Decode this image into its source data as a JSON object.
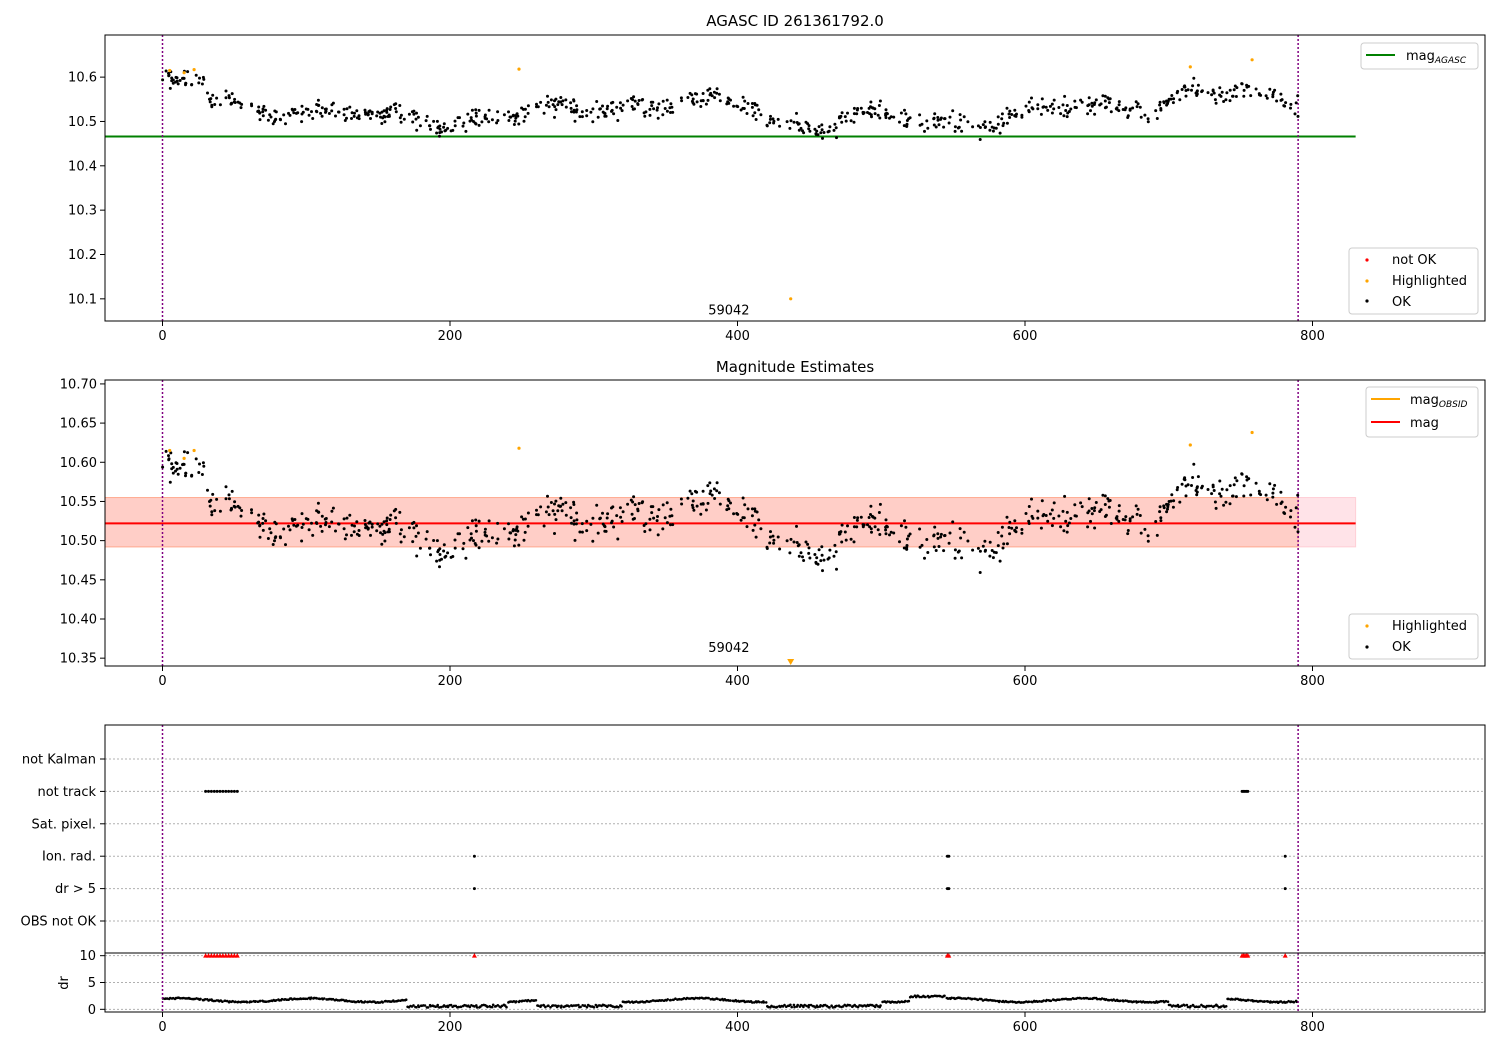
{
  "figure": {
    "background": "#ffffff"
  },
  "chart_data": [
    {
      "type": "scatter",
      "title": "AGASC ID 261361792.0",
      "xlabel": "",
      "ylabel": "",
      "xlim": [
        -40,
        920
      ],
      "ylim": [
        10.05,
        10.695
      ],
      "xticks": [
        0,
        200,
        400,
        600,
        800
      ],
      "xtick_labels": [
        "0",
        "200",
        "400",
        "600",
        "800"
      ],
      "yticks": [
        10.1,
        10.2,
        10.3,
        10.4,
        10.5,
        10.6
      ],
      "ytick_labels": [
        "10.1",
        "10.2",
        "10.3",
        "10.4",
        "10.5",
        "10.6"
      ],
      "grid": false,
      "vlines": [
        0,
        790
      ],
      "vline_color": "#800080",
      "annotation": {
        "text": "59042",
        "x": 394,
        "y": 10.065
      },
      "hline": {
        "label": "mag_AGASC",
        "value": 10.466,
        "xrange": [
          -40,
          830
        ],
        "color": "#008000"
      },
      "legend_lines": {
        "position": "upper right",
        "entries": [
          {
            "label": "mag",
            "sub": "AGASC",
            "color": "#008000"
          }
        ]
      },
      "legend_points": {
        "position": "lower right",
        "entries": [
          {
            "label": "not OK",
            "color": "#ff0000"
          },
          {
            "label": "Highlighted",
            "color": "#ffa500"
          },
          {
            "label": "OK",
            "color": "#000000"
          }
        ]
      },
      "series": [
        {
          "name": "OK",
          "color": "#000000",
          "generated": true,
          "n": 760,
          "x_range": [
            0,
            790
          ]
        },
        {
          "name": "Highlighted",
          "color": "#ffa500",
          "points": [
            [
              5,
              10.615
            ],
            [
              15,
              10.61
            ],
            [
              22,
              10.617
            ],
            [
              248,
              10.618
            ],
            [
              715,
              10.623
            ],
            [
              758,
              10.639
            ],
            [
              437,
              10.1
            ]
          ]
        },
        {
          "name": "not OK",
          "color": "#ff0000",
          "points": []
        }
      ]
    },
    {
      "type": "scatter",
      "title": "Magnitude Estimates",
      "xlabel": "",
      "ylabel": "",
      "xlim": [
        -40,
        920
      ],
      "ylim": [
        10.34,
        10.705
      ],
      "xticks": [
        0,
        200,
        400,
        600,
        800
      ],
      "xtick_labels": [
        "0",
        "200",
        "400",
        "600",
        "800"
      ],
      "yticks": [
        10.35,
        10.4,
        10.45,
        10.5,
        10.55,
        10.6,
        10.65,
        10.7
      ],
      "ytick_labels": [
        "10.35",
        "10.40",
        "10.45",
        "10.50",
        "10.55",
        "10.60",
        "10.65",
        "10.70"
      ],
      "grid": false,
      "vlines": [
        0,
        790
      ],
      "vline_color": "#800080",
      "annotation": {
        "text": "59042",
        "x": 394,
        "y": 10.358
      },
      "bands": [
        {
          "y0": 10.492,
          "y1": 10.555,
          "xrange": [
            -40,
            830
          ],
          "color": "#ffc0cb",
          "opacity": 0.45
        },
        {
          "y0": 10.492,
          "y1": 10.555,
          "xrange": [
            -40,
            790
          ],
          "color": "#ffa07a",
          "opacity": 0.3
        }
      ],
      "hline": {
        "label": "mag",
        "value": 10.522,
        "xrange": [
          -40,
          830
        ],
        "color": "#ff0000"
      },
      "legend_lines": {
        "position": "upper right",
        "entries": [
          {
            "label": "mag",
            "sub": "OBSID",
            "color": "#ffa500"
          },
          {
            "label": "mag",
            "sub": "",
            "color": "#ff0000"
          }
        ]
      },
      "legend_points": {
        "position": "lower right",
        "entries": [
          {
            "label": "Highlighted",
            "color": "#ffa500"
          },
          {
            "label": "OK",
            "color": "#000000"
          }
        ]
      },
      "series": [
        {
          "name": "OK",
          "color": "#000000",
          "generated": true,
          "n": 760,
          "x_range": [
            0,
            790
          ]
        },
        {
          "name": "Highlighted",
          "color": "#ffa500",
          "points": [
            [
              5,
              10.615
            ],
            [
              15,
              10.605
            ],
            [
              22,
              10.615
            ],
            [
              248,
              10.618
            ],
            [
              715,
              10.622
            ],
            [
              758,
              10.638
            ]
          ]
        }
      ],
      "offscale_marker": {
        "x": 437,
        "color": "#ffa500"
      }
    },
    {
      "type": "scatter",
      "title": "",
      "xlabel": "",
      "xlim": [
        -40,
        920
      ],
      "xticks": [
        0,
        200,
        400,
        600,
        800
      ],
      "xtick_labels": [
        "0",
        "200",
        "400",
        "600",
        "800"
      ],
      "vlines": [
        0,
        790
      ],
      "vline_color": "#800080",
      "flags": {
        "categories": [
          "OBS not OK",
          "dr > 5",
          "Ion. rad.",
          "Sat. pixel.",
          "not track",
          "not Kalman"
        ],
        "points": [
          {
            "flag": "not track",
            "x": [
              30,
              32,
              34,
              36,
              38,
              40,
              42,
              44,
              46,
              48,
              50,
              52,
              751,
              752,
              753,
              754,
              755
            ]
          },
          {
            "flag": "Ion. rad.",
            "x": [
              217,
              546,
              547,
              781
            ]
          },
          {
            "flag": "dr > 5",
            "x": [
              217,
              546,
              547,
              781
            ]
          }
        ]
      },
      "dr": {
        "ylabel": "dr",
        "ylim": [
          -0.5,
          10.5
        ],
        "yticks": [
          0,
          5,
          10
        ],
        "ytick_labels": [
          "0",
          "5",
          "10"
        ],
        "clipped_value": 10,
        "clipped_x": [
          30,
          32,
          34,
          36,
          38,
          40,
          42,
          44,
          46,
          48,
          50,
          52,
          217,
          546,
          547,
          751,
          752,
          753,
          754,
          755,
          781
        ],
        "generated": true,
        "n": 780,
        "x_range": [
          0,
          790
        ]
      }
    }
  ]
}
